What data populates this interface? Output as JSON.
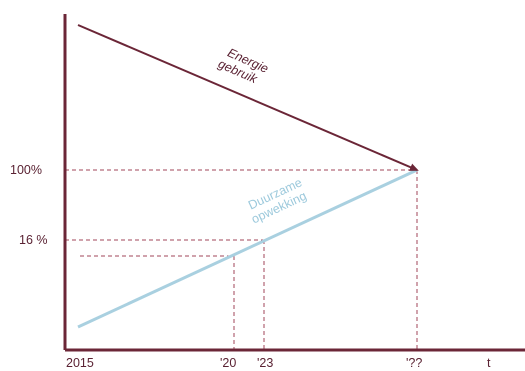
{
  "chart_data": {
    "type": "line",
    "x_tick_labels": [
      "2015",
      "'20",
      "'23",
      "'??",
      "t"
    ],
    "y_tick_labels": [
      "100%",
      "16 %"
    ],
    "series": [
      {
        "label_lines": [
          "Energie",
          "gebruik"
        ],
        "color": "#6b2637",
        "from": 175,
        "to": 100
      },
      {
        "label_lines": [
          "Duurzame",
          "opwekking"
        ],
        "color": "#a9d0e0",
        "from": -28,
        "to": 100
      }
    ],
    "reference_points": [
      {
        "x": "'20",
        "y": 4
      },
      {
        "x": "'23",
        "y": 16
      },
      {
        "x": "'??",
        "y": 100
      }
    ],
    "axis_color": "#6b2637",
    "guide_line_color": "#a0455a"
  }
}
